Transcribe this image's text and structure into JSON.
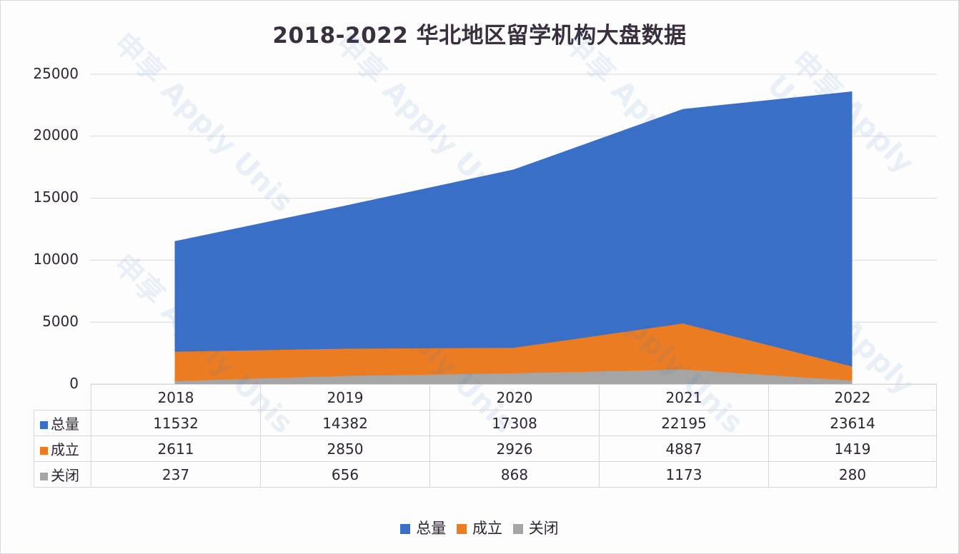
{
  "chart_data": {
    "type": "area",
    "stacked": false,
    "title": "2018-2022 华北地区留学机构大盘数据",
    "xlabel": "",
    "ylabel": "",
    "categories": [
      "2018",
      "2019",
      "2020",
      "2021",
      "2022"
    ],
    "series": [
      {
        "name": "总量",
        "color": "#3a6fc8",
        "values": [
          11532,
          14382,
          17308,
          22195,
          23614
        ]
      },
      {
        "name": "成立",
        "color": "#ec7c22",
        "values": [
          2611,
          2850,
          2926,
          4887,
          1419
        ]
      },
      {
        "name": "关闭",
        "color": "#a5a5a5",
        "values": [
          237,
          656,
          868,
          1173,
          280
        ]
      }
    ],
    "ylim": [
      0,
      25000
    ],
    "yticks": [
      "25000",
      "20000",
      "15000",
      "10000",
      "5000",
      "0"
    ],
    "grid": true,
    "legend_position": "bottom",
    "data_table": true
  },
  "watermark": "申享 Apply Unis"
}
